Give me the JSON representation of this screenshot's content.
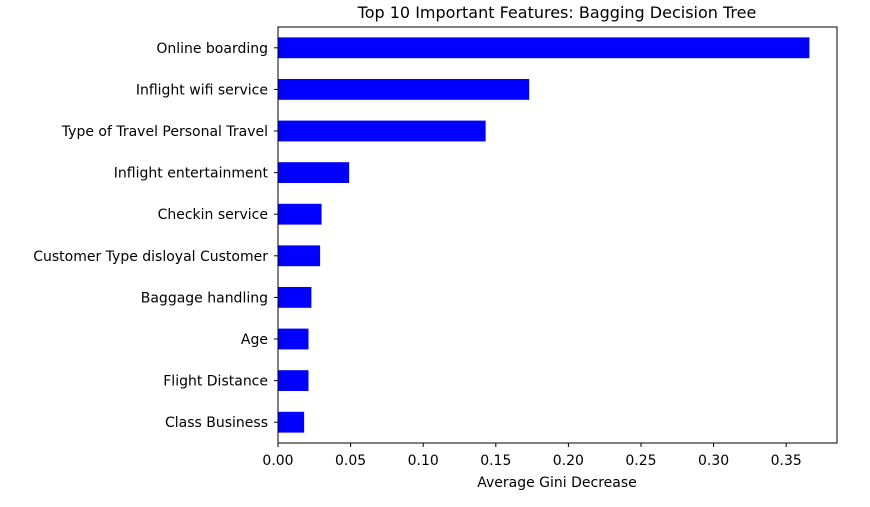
{
  "chart_data": {
    "type": "bar",
    "orientation": "horizontal",
    "title": "Top 10 Important Features: Bagging Decision Tree",
    "xlabel": "Average Gini Decrease",
    "ylabel": "",
    "xlim": [
      0,
      0.385
    ],
    "xticks": [
      "0.00",
      "0.05",
      "0.10",
      "0.15",
      "0.20",
      "0.25",
      "0.30",
      "0.35"
    ],
    "bar_color": "#0000ff",
    "grid": false,
    "legend": "none",
    "categories": [
      "Online boarding",
      "Inflight wifi service",
      "Type of Travel Personal Travel",
      "Inflight entertainment",
      "Checkin service",
      "Customer Type disloyal Customer",
      "Baggage handling",
      "Age",
      "Flight Distance",
      "Class Business"
    ],
    "values": [
      0.366,
      0.173,
      0.143,
      0.049,
      0.03,
      0.029,
      0.023,
      0.021,
      0.021,
      0.018
    ]
  }
}
